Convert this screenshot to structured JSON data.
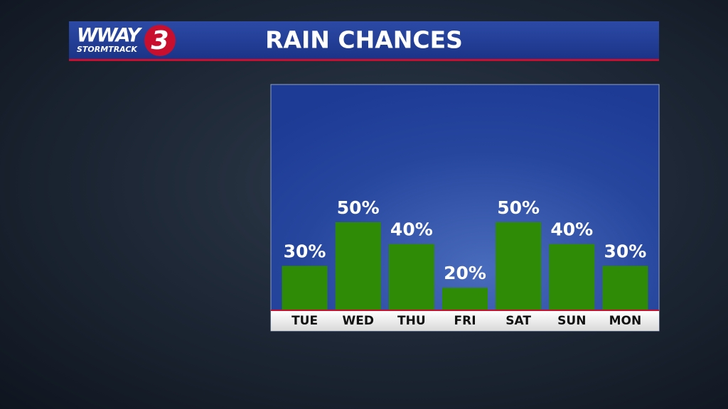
{
  "logo": {
    "name": "WWAY",
    "sub": "STORMTRACK",
    "number": "3"
  },
  "chart_data": {
    "type": "bar",
    "title": "RAIN CHANCES",
    "categories": [
      "TUE",
      "WED",
      "THU",
      "FRI",
      "SAT",
      "SUN",
      "MON"
    ],
    "values": [
      30,
      50,
      40,
      20,
      50,
      40,
      30
    ],
    "value_labels": [
      "30%",
      "50%",
      "40%",
      "20%",
      "50%",
      "40%",
      "30%"
    ],
    "color": "#2f8a06",
    "ylim": [
      10,
      113
    ]
  }
}
